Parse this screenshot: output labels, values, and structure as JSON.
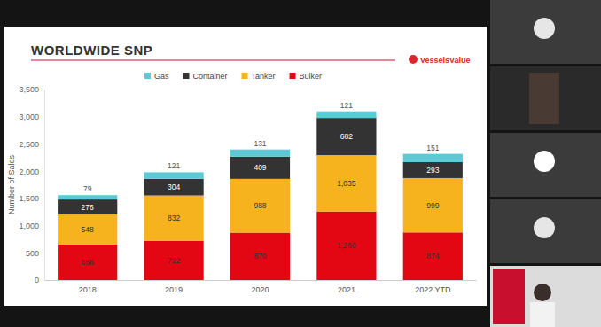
{
  "chart_data": {
    "type": "bar",
    "stacked": true,
    "data_labels": true,
    "grid": false,
    "legend": "top",
    "title": "WORLDWIDE SNP",
    "annotations": [
      "VesselsValue"
    ],
    "y_label": "Number of Sales",
    "categories": [
      "2018",
      "2019",
      "2020",
      "2021",
      "2022 YTD"
    ],
    "series": [
      {
        "name": "Bulker",
        "color": "#e30613",
        "values": [
          656,
          722,
          870,
          1260,
          874
        ],
        "value_labels": [
          "656",
          "722",
          "870",
          "1,260",
          "874"
        ]
      },
      {
        "name": "Tanker",
        "color": "#f7b31d",
        "values": [
          548,
          832,
          988,
          1035,
          999
        ],
        "value_labels": [
          "548",
          "832",
          "988",
          "1,035",
          "999"
        ]
      },
      {
        "name": "Container",
        "color": "#333333",
        "values": [
          276,
          304,
          409,
          682,
          293
        ]
      },
      {
        "name": "Gas",
        "color": "#5cc9d6",
        "values": [
          79,
          121,
          131,
          121,
          151
        ]
      }
    ],
    "ylim": [
      0,
      3500
    ],
    "yticks": [
      0,
      500,
      {
        "value": 1000,
        "label": "1,000"
      },
      {
        "value": 1500,
        "label": "1,500"
      },
      {
        "value": 2000,
        "label": "2,000"
      },
      {
        "value": 2500,
        "label": "2,500"
      },
      {
        "value": 3000,
        "label": "3,000"
      },
      {
        "value": 3500,
        "label": "3,500"
      }
    ]
  }
}
